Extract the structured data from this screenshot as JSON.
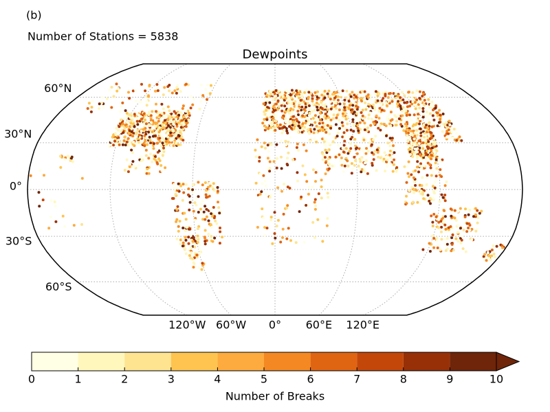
{
  "panel_label": "(b)",
  "subtitle": "Number of Stations = 5838",
  "title": "Dewpoints",
  "map": {
    "projection": "robinson",
    "lat_labels": [
      {
        "value": 60,
        "label": "60°N"
      },
      {
        "value": 30,
        "label": "30°N"
      },
      {
        "value": 0,
        "label": "0°"
      },
      {
        "value": -30,
        "label": "30°S"
      },
      {
        "value": -60,
        "label": "60°S"
      }
    ],
    "lon_labels": [
      {
        "value": -120,
        "label": "120°W"
      },
      {
        "value": -60,
        "label": "60°W"
      },
      {
        "value": 0,
        "label": "0°"
      },
      {
        "value": 60,
        "label": "60°E"
      },
      {
        "value": 120,
        "label": "120°E"
      }
    ]
  },
  "colorbar": {
    "ticks": [
      0,
      1,
      2,
      3,
      4,
      5,
      6,
      7,
      8,
      9,
      10
    ],
    "colors": [
      "#ffffe5",
      "#fff7bc",
      "#fee391",
      "#fec44f",
      "#fdab3e",
      "#f48822",
      "#e06512",
      "#c4470a",
      "#983007",
      "#6f2509"
    ],
    "extend": "max",
    "label": "Number of Breaks"
  }
}
